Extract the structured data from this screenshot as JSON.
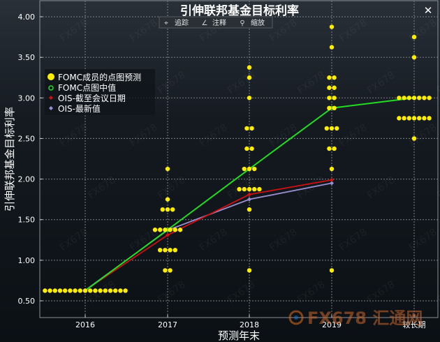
{
  "window": {
    "close_glyph": "✕",
    "toolbar": [
      {
        "icon": "crosshair-icon",
        "glyph": "⌖",
        "label": "追踪"
      },
      {
        "icon": "annotate-icon",
        "glyph": "∠",
        "label": "注释"
      },
      {
        "icon": "zoom-icon",
        "glyph": "⚲",
        "label": "缩放"
      }
    ]
  },
  "watermark": {
    "text": "FX678 汇通网",
    "tile_text": "FX678"
  },
  "colors": {
    "background": "#151b22",
    "grid": "#7a8088",
    "dots": "#ffee00",
    "median": "#22dd22",
    "ois_meeting": "#cc1111",
    "ois_latest": "#9a8fd0",
    "text": "#ffffff"
  },
  "chart_data": {
    "type": "scatter",
    "title": "引伸联邦基金目标利率",
    "xlabel": "预测年末",
    "ylabel": "引伸联邦基金目标利率",
    "categories": [
      "2016",
      "2017",
      "2018",
      "2019",
      "较长期"
    ],
    "ylim": [
      0.4,
      4.1
    ],
    "yticks": [
      "0.50",
      "1.00",
      "1.50",
      "2.00",
      "2.50",
      "3.00",
      "3.50",
      "4.00"
    ],
    "grid": true,
    "legend_position": "top-left",
    "legend": [
      {
        "key": "dots",
        "label": "FOMC成员的点图预测"
      },
      {
        "key": "median",
        "label": "FOMC点图中值"
      },
      {
        "key": "ois_meeting",
        "label": "OIS-截至会议日期"
      },
      {
        "key": "ois_latest",
        "label": "OIS-最新值"
      }
    ],
    "dot_plot": [
      {
        "category": "2016",
        "groups": [
          {
            "rate": 0.625,
            "count": 17
          }
        ]
      },
      {
        "category": "2017",
        "groups": [
          {
            "rate": 0.875,
            "count": 2
          },
          {
            "rate": 1.125,
            "count": 4
          },
          {
            "rate": 1.375,
            "count": 6
          },
          {
            "rate": 1.625,
            "count": 3
          },
          {
            "rate": 1.75,
            "count": 1
          },
          {
            "rate": 2.125,
            "count": 1
          }
        ]
      },
      {
        "category": "2018",
        "groups": [
          {
            "rate": 0.875,
            "count": 1
          },
          {
            "rate": 1.625,
            "count": 1
          },
          {
            "rate": 1.875,
            "count": 5
          },
          {
            "rate": 2.125,
            "count": 3
          },
          {
            "rate": 2.375,
            "count": 2
          },
          {
            "rate": 2.625,
            "count": 2
          },
          {
            "rate": 3.0,
            "count": 1
          },
          {
            "rate": 3.25,
            "count": 1
          },
          {
            "rate": 3.375,
            "count": 1
          }
        ]
      },
      {
        "category": "2019",
        "groups": [
          {
            "rate": 0.875,
            "count": 1
          },
          {
            "rate": 2.125,
            "count": 1
          },
          {
            "rate": 2.375,
            "count": 2
          },
          {
            "rate": 2.625,
            "count": 3
          },
          {
            "rate": 2.875,
            "count": 2
          },
          {
            "rate": 3.0,
            "count": 2
          },
          {
            "rate": 3.125,
            "count": 2
          },
          {
            "rate": 3.25,
            "count": 2
          },
          {
            "rate": 3.625,
            "count": 1
          },
          {
            "rate": 3.875,
            "count": 1
          }
        ]
      },
      {
        "category": "较长期",
        "groups": [
          {
            "rate": 2.5,
            "count": 1
          },
          {
            "rate": 2.75,
            "count": 7
          },
          {
            "rate": 3.0,
            "count": 7
          },
          {
            "rate": 3.5,
            "count": 1
          },
          {
            "rate": 3.75,
            "count": 1
          }
        ]
      }
    ],
    "series": [
      {
        "key": "median",
        "name": "FOMC点图中值",
        "x": [
          0,
          1,
          2,
          3,
          4
        ],
        "y": [
          0.625,
          1.375,
          2.125,
          2.875,
          3.0
        ]
      },
      {
        "key": "ois_meeting",
        "name": "OIS-截至会议日期",
        "x": [
          0,
          1,
          2,
          3
        ],
        "y": [
          0.63,
          1.31,
          1.81,
          1.99
        ]
      },
      {
        "key": "ois_latest",
        "name": "OIS-最新值",
        "x": [
          0,
          1,
          2,
          3
        ],
        "y": [
          0.63,
          1.37,
          1.75,
          1.95
        ]
      }
    ]
  }
}
